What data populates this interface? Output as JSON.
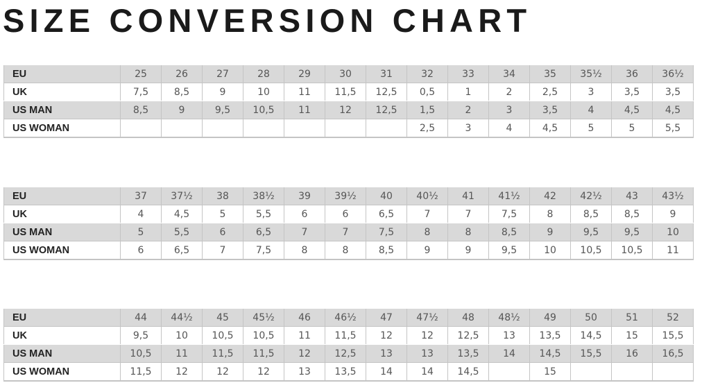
{
  "title": "SIZE CONVERSION CHART",
  "row_labels": [
    "EU",
    "UK",
    "US MAN",
    "US WOMAN"
  ],
  "tables": [
    {
      "rows": [
        [
          "25",
          "26",
          "27",
          "28",
          "29",
          "30",
          "31",
          "32",
          "33",
          "34",
          "35",
          "35½",
          "36",
          "36½"
        ],
        [
          "7,5",
          "8,5",
          "9",
          "10",
          "11",
          "11,5",
          "12,5",
          "0,5",
          "1",
          "2",
          "2,5",
          "3",
          "3,5",
          "3,5"
        ],
        [
          "8,5",
          "9",
          "9,5",
          "10,5",
          "11",
          "12",
          "12,5",
          "1,5",
          "2",
          "3",
          "3,5",
          "4",
          "4,5",
          "4,5"
        ],
        [
          "",
          "",
          "",
          "",
          "",
          "",
          "",
          "2,5",
          "3",
          "4",
          "4,5",
          "5",
          "5",
          "5,5"
        ]
      ]
    },
    {
      "rows": [
        [
          "37",
          "37½",
          "38",
          "38½",
          "39",
          "39½",
          "40",
          "40½",
          "41",
          "41½",
          "42",
          "42½",
          "43",
          "43½"
        ],
        [
          "4",
          "4,5",
          "5",
          "5,5",
          "6",
          "6",
          "6,5",
          "7",
          "7",
          "7,5",
          "8",
          "8,5",
          "8,5",
          "9"
        ],
        [
          "5",
          "5,5",
          "6",
          "6,5",
          "7",
          "7",
          "7,5",
          "8",
          "8",
          "8,5",
          "9",
          "9,5",
          "9,5",
          "10"
        ],
        [
          "6",
          "6,5",
          "7",
          "7,5",
          "8",
          "8",
          "8,5",
          "9",
          "9",
          "9,5",
          "10",
          "10,5",
          "10,5",
          "11"
        ]
      ]
    },
    {
      "rows": [
        [
          "44",
          "44½",
          "45",
          "45½",
          "46",
          "46½",
          "47",
          "47½",
          "48",
          "48½",
          "49",
          "50",
          "51",
          "52"
        ],
        [
          "9,5",
          "10",
          "10,5",
          "10,5",
          "11",
          "11,5",
          "12",
          "12",
          "12,5",
          "13",
          "13,5",
          "14,5",
          "15",
          "15,5"
        ],
        [
          "10,5",
          "11",
          "11,5",
          "11,5",
          "12",
          "12,5",
          "13",
          "13",
          "13,5",
          "14",
          "14,5",
          "15,5",
          "16",
          "16,5"
        ],
        [
          "11,5",
          "12",
          "12",
          "12",
          "13",
          "13,5",
          "14",
          "14",
          "14,5",
          "",
          "15",
          "",
          "",
          ""
        ]
      ]
    }
  ]
}
